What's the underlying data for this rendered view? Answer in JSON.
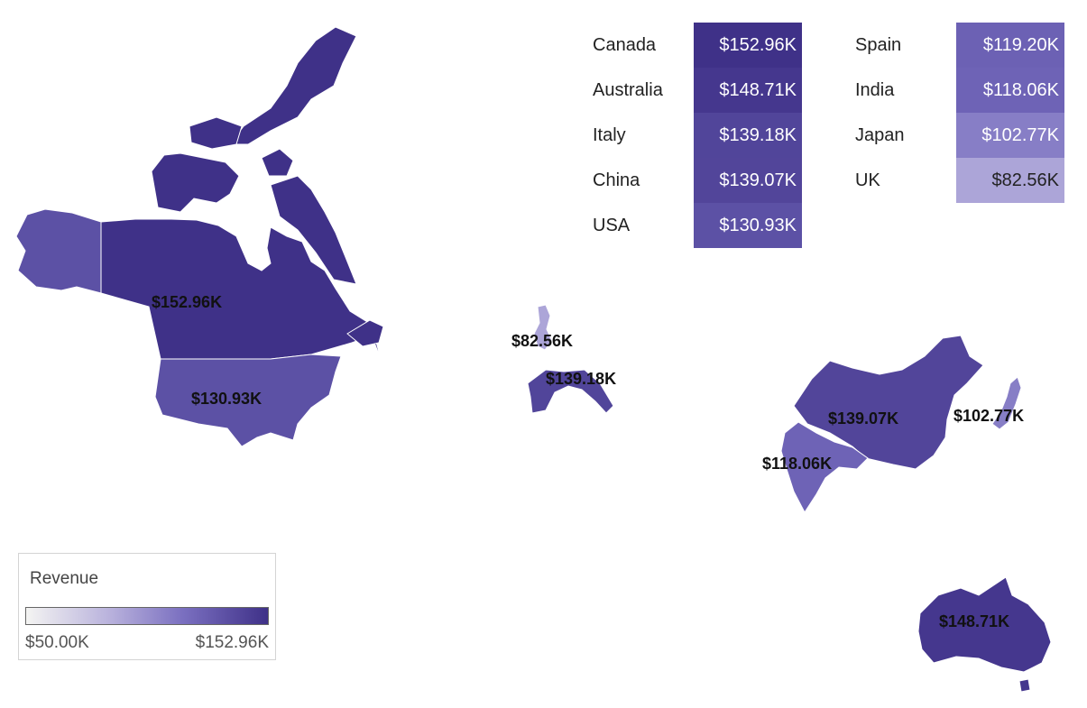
{
  "color_scale": {
    "min_color": "#f4f4f2",
    "max_color": "#3f3188",
    "min_value": 50.0,
    "max_value": 152.96
  },
  "map_regions": [
    {
      "name": "Canada",
      "label": "$152.96K",
      "value": 152.96
    },
    {
      "name": "USA",
      "label": "$130.93K",
      "value": 130.93
    },
    {
      "name": "UK",
      "label": "$82.56K",
      "value": 82.56
    },
    {
      "name": "Italy",
      "label": "$139.18K",
      "value": 139.18
    },
    {
      "name": "China",
      "label": "$139.07K",
      "value": 139.07
    },
    {
      "name": "Japan",
      "label": "$102.77K",
      "value": 102.77
    },
    {
      "name": "India",
      "label": "$118.06K",
      "value": 118.06
    },
    {
      "name": "Australia",
      "label": "$148.71K",
      "value": 148.71
    }
  ],
  "table": {
    "left": [
      {
        "country": "Canada",
        "value_label": "$152.96K",
        "value": 152.96
      },
      {
        "country": "Australia",
        "value_label": "$148.71K",
        "value": 148.71
      },
      {
        "country": "Italy",
        "value_label": "$139.18K",
        "value": 139.18
      },
      {
        "country": "China",
        "value_label": "$139.07K",
        "value": 139.07
      },
      {
        "country": "USA",
        "value_label": "$130.93K",
        "value": 130.93
      }
    ],
    "right": [
      {
        "country": "Spain",
        "value_label": "$119.20K",
        "value": 119.2
      },
      {
        "country": "India",
        "value_label": "$118.06K",
        "value": 118.06
      },
      {
        "country": "Japan",
        "value_label": "$102.77K",
        "value": 102.77
      },
      {
        "country": "UK",
        "value_label": "$82.56K",
        "value": 82.56
      }
    ]
  },
  "legend": {
    "title": "Revenue",
    "min_label": "$50.00K",
    "max_label": "$152.96K"
  }
}
